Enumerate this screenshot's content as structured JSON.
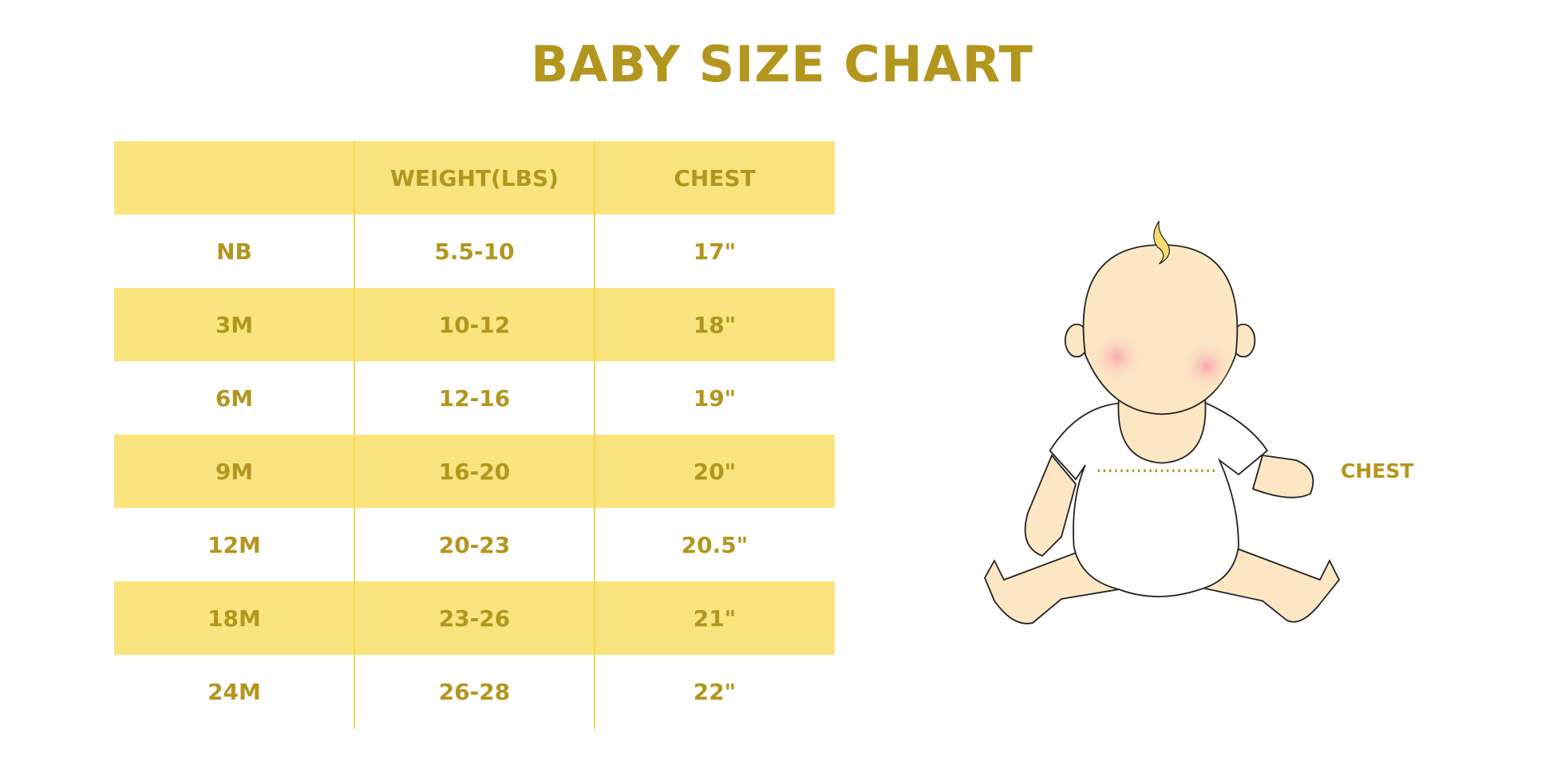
{
  "title": "BABY SIZE CHART",
  "table": {
    "headers": [
      "",
      "WEIGHT(LBS)",
      "CHEST"
    ],
    "rows": [
      [
        "NB",
        "5.5-10",
        "17\""
      ],
      [
        "3M",
        "10-12",
        "18\""
      ],
      [
        "6M",
        "12-16",
        "19\""
      ],
      [
        "9M",
        "16-20",
        "20\""
      ],
      [
        "12M",
        "20-23",
        "20.5\""
      ],
      [
        "18M",
        "23-26",
        "21\""
      ],
      [
        "24M",
        "26-28",
        "22\""
      ]
    ]
  },
  "illustration": {
    "chest_label": "CHEST"
  },
  "colors": {
    "text": "#B3961E",
    "band": "#FAE47D",
    "divider": "#F7D84A"
  }
}
